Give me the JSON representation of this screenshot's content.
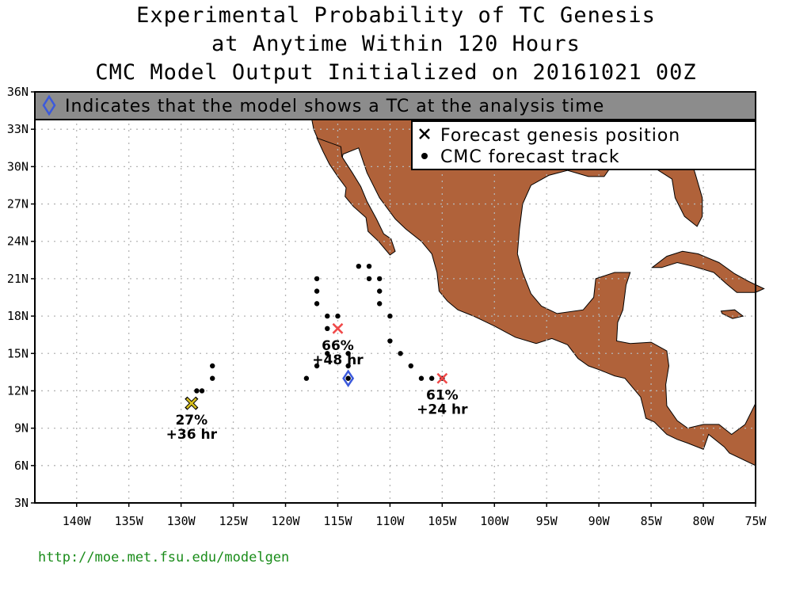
{
  "title_lines": [
    "Experimental Probability of TC Genesis",
    "at Anytime Within 120 Hours",
    "CMC Model Output Initialized on 20161021 00Z"
  ],
  "banner": {
    "text": "Indicates that the model shows a TC at the analysis time",
    "icon": "diamond-icon"
  },
  "legend": {
    "genesis_label": "Forecast genesis position",
    "track_label": "CMC forecast track"
  },
  "colors": {
    "land": "#b0623a",
    "banner_bg": "#8c8c8c",
    "grid": "#b5b5b5",
    "diamond": "#3c5adc",
    "url": "#1a8c1a"
  },
  "axes": {
    "lat_labels": [
      "36N",
      "33N",
      "30N",
      "27N",
      "24N",
      "21N",
      "18N",
      "15N",
      "12N",
      "9N",
      "6N",
      "3N"
    ],
    "lon_labels": [
      "140W",
      "135W",
      "130W",
      "125W",
      "120W",
      "115W",
      "110W",
      "105W",
      "100W",
      "95W",
      "90W",
      "85W",
      "80W",
      "75W"
    ],
    "lat_range": [
      3,
      36
    ],
    "lon_range": [
      -144,
      -75
    ]
  },
  "chart_data": {
    "type": "scatter",
    "xlabel": "",
    "ylabel": "",
    "xlim": [
      -144,
      -75
    ],
    "ylim": [
      3,
      36
    ],
    "genesis": [
      {
        "lon": -129,
        "lat": 11,
        "probability": "27%",
        "lead": "+36 hr",
        "color": "#d8c020"
      },
      {
        "lon": -115,
        "lat": 17,
        "probability": "66%",
        "lead": "+48 hr",
        "color": "#f04848"
      },
      {
        "lon": -105,
        "lat": 13,
        "probability": "61%",
        "lead": "+24 hr",
        "color": "#f04848"
      }
    ],
    "analysis_tc": [
      {
        "lon": -114,
        "lat": 13
      }
    ],
    "track_points": [
      [
        -129,
        11
      ],
      [
        -128.5,
        12
      ],
      [
        -128,
        12
      ],
      [
        -127,
        13
      ],
      [
        -127,
        14
      ],
      [
        -118,
        13
      ],
      [
        -117,
        14
      ],
      [
        -116,
        15
      ],
      [
        -116,
        17
      ],
      [
        -117,
        19
      ],
      [
        -117,
        20
      ],
      [
        -117,
        21
      ],
      [
        -116,
        18
      ],
      [
        -115,
        18
      ],
      [
        -114,
        13
      ],
      [
        -114,
        14
      ],
      [
        -114,
        15
      ],
      [
        -113,
        22
      ],
      [
        -112,
        22
      ],
      [
        -112,
        21
      ],
      [
        -111,
        21
      ],
      [
        -111,
        20
      ],
      [
        -111,
        19
      ],
      [
        -110,
        18
      ],
      [
        -110,
        16
      ],
      [
        -109,
        15
      ],
      [
        -108,
        14
      ],
      [
        -107,
        13
      ],
      [
        -106,
        13
      ],
      [
        -105,
        13
      ]
    ]
  },
  "footer_url": "http://moe.met.fsu.edu/modelgen"
}
